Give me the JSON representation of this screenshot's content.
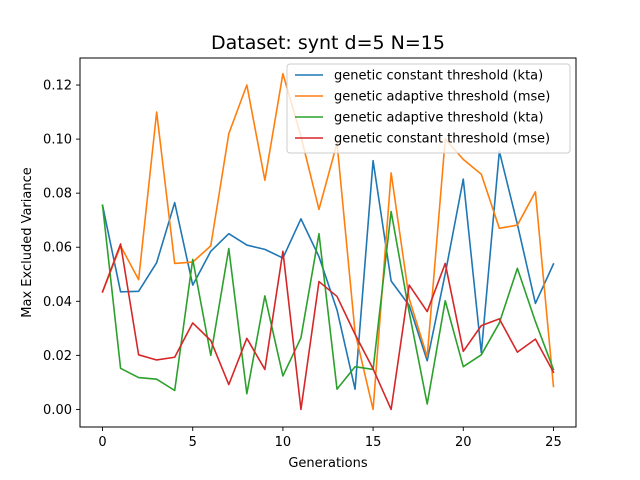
{
  "chart_data": {
    "type": "line",
    "title": "Dataset: synt d=5 N=15",
    "xlabel": "Generations",
    "ylabel": "Max Excluded Variance",
    "xlim": [
      -1.25,
      26.25
    ],
    "ylim": [
      -0.0065,
      0.13
    ],
    "xticks": [
      0,
      5,
      10,
      15,
      20,
      25
    ],
    "yticks": [
      0.0,
      0.02,
      0.04,
      0.06,
      0.08,
      0.1,
      0.12
    ],
    "ytick_format": 2,
    "legend_position": "upper right",
    "grid": false,
    "x": [
      0,
      1,
      2,
      3,
      4,
      5,
      6,
      7,
      8,
      9,
      10,
      11,
      12,
      13,
      14,
      15,
      16,
      17,
      18,
      19,
      20,
      21,
      22,
      23,
      24,
      25
    ],
    "series": [
      {
        "name": "genetic constant threshold (kta)",
        "color": "#1f77b4",
        "values": [
          0.0755,
          0.0435,
          0.0437,
          0.0543,
          0.0765,
          0.046,
          0.0585,
          0.065,
          0.0608,
          0.0592,
          0.056,
          0.0705,
          0.0565,
          0.0368,
          0.0075,
          0.092,
          0.0475,
          0.0385,
          0.018,
          0.0502,
          0.0852,
          0.021,
          0.0955,
          0.0685,
          0.0392,
          0.0538
        ]
      },
      {
        "name": "genetic adaptive threshold (mse)",
        "color": "#ff7f0e",
        "values": [
          0.0435,
          0.0605,
          0.048,
          0.11,
          0.054,
          0.0545,
          0.0605,
          0.102,
          0.12,
          0.0848,
          0.1242,
          0.101,
          0.074,
          0.0985,
          0.0285,
          0.0,
          0.0875,
          0.041,
          0.0195,
          0.1,
          0.0925,
          0.087,
          0.067,
          0.0682,
          0.0805,
          0.0085
        ]
      },
      {
        "name": "genetic adaptive threshold (kta)",
        "color": "#2ca02c",
        "values": [
          0.0755,
          0.0152,
          0.0118,
          0.0112,
          0.007,
          0.0555,
          0.02,
          0.0595,
          0.0058,
          0.042,
          0.0124,
          0.0265,
          0.065,
          0.0075,
          0.0158,
          0.0148,
          0.0732,
          0.036,
          0.002,
          0.0402,
          0.0158,
          0.0202,
          0.032,
          0.0522,
          0.0325,
          0.0148
        ]
      },
      {
        "name": "genetic constant threshold (mse)",
        "color": "#d62728",
        "values": [
          0.0435,
          0.0612,
          0.0202,
          0.0183,
          0.0193,
          0.032,
          0.0255,
          0.0092,
          0.0263,
          0.0148,
          0.0585,
          0.0,
          0.0473,
          0.0418,
          0.0278,
          0.015,
          0.0,
          0.046,
          0.0362,
          0.054,
          0.0215,
          0.031,
          0.0335,
          0.0212,
          0.026,
          0.0138
        ]
      }
    ]
  }
}
